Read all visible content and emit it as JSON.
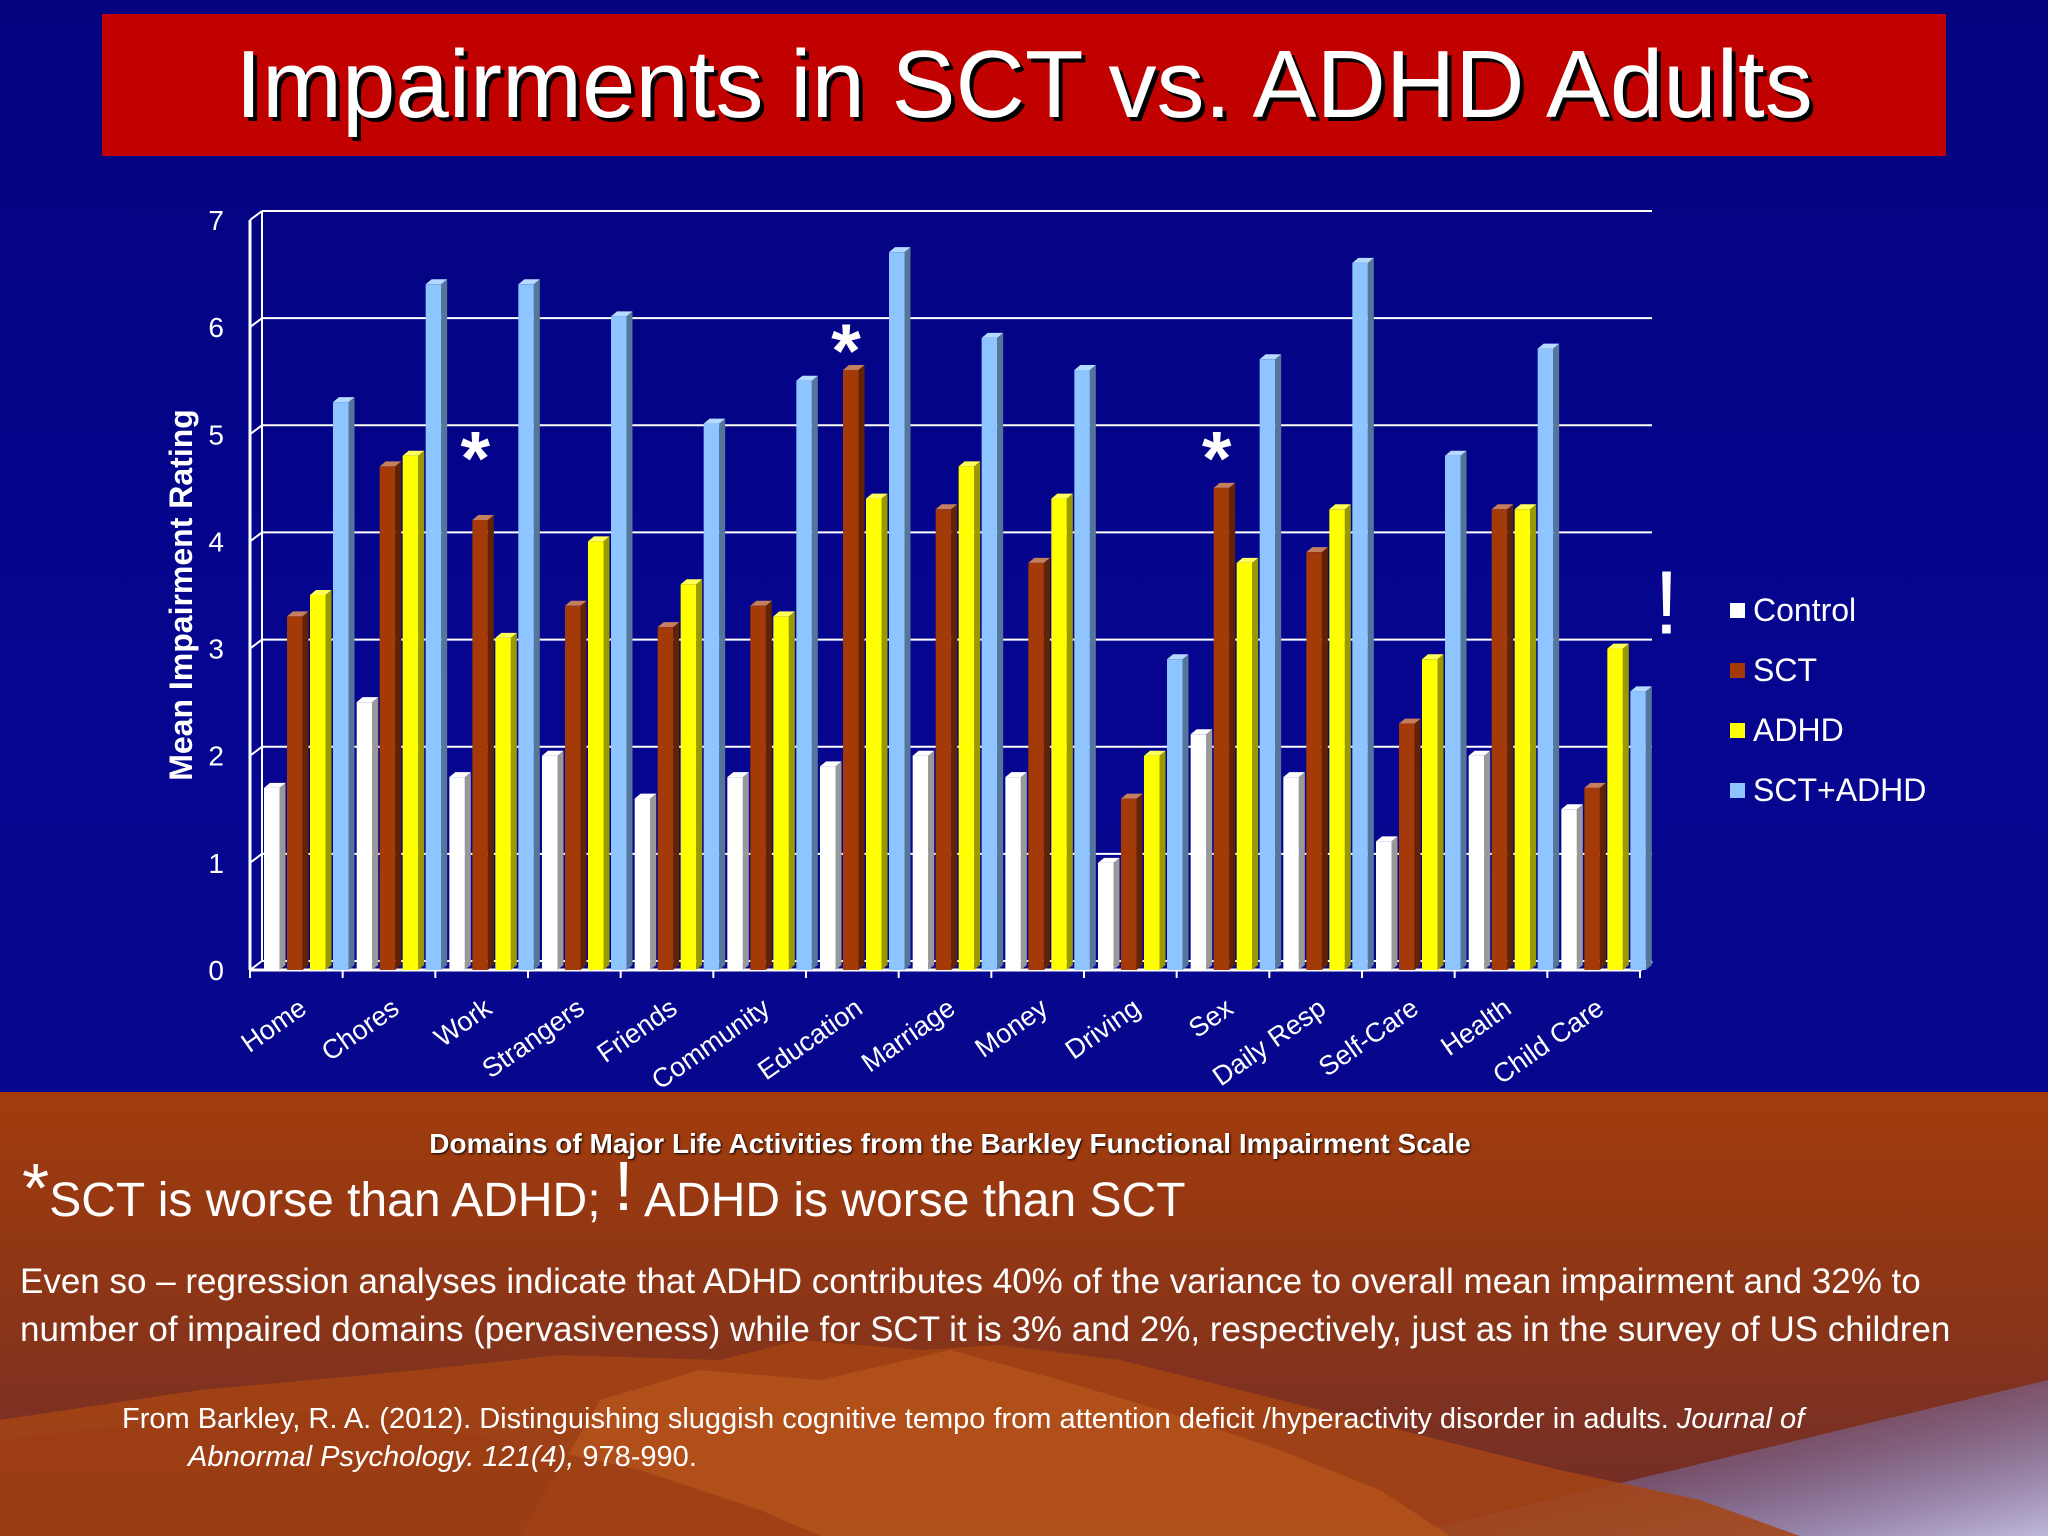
{
  "title": "Impairments in SCT vs. ADHD Adults",
  "chart_data": {
    "type": "bar",
    "ylabel": "Mean Impairment Rating",
    "xlabel": "Domains of Major Life Activities from the Barkley Functional Impairment Scale",
    "ylim": [
      0,
      7
    ],
    "yticks": [
      "0",
      "1",
      "2",
      "3",
      "4",
      "5",
      "6",
      "7"
    ],
    "grid": true,
    "legend_position": "right",
    "categories": [
      "Home",
      "Chores",
      "Work",
      "Strangers",
      "Friends",
      "Community",
      "Education",
      "Marriage",
      "Money",
      "Driving",
      "Sex",
      "Daily Resp",
      "Self-Care",
      "Health",
      "Child Care"
    ],
    "series": [
      {
        "name": "Control",
        "color": "#ffffff",
        "values": [
          1.7,
          2.5,
          1.8,
          2.0,
          1.6,
          1.8,
          1.9,
          2.0,
          1.8,
          1.0,
          2.2,
          1.8,
          1.2,
          2.0,
          1.5
        ]
      },
      {
        "name": "SCT",
        "color": "#a33a08",
        "values": [
          3.3,
          4.7,
          4.2,
          3.4,
          3.2,
          3.4,
          5.6,
          4.3,
          3.8,
          1.6,
          4.5,
          3.9,
          2.3,
          4.3,
          1.7
        ]
      },
      {
        "name": "ADHD",
        "color": "#ffff00",
        "values": [
          3.5,
          4.8,
          3.1,
          4.0,
          3.6,
          3.3,
          4.4,
          4.7,
          4.4,
          2.0,
          3.8,
          4.3,
          2.9,
          4.3,
          3.0
        ]
      },
      {
        "name": "SCT+ADHD",
        "color": "#8ec4ff",
        "values": [
          5.3,
          6.4,
          6.4,
          6.1,
          5.1,
          5.5,
          6.7,
          5.9,
          5.6,
          2.9,
          5.7,
          6.6,
          4.8,
          5.8,
          2.6
        ]
      }
    ],
    "annotations": [
      {
        "text": "*",
        "category": "Work",
        "value": 5.0
      },
      {
        "text": "*",
        "category": "Education",
        "value": 6.0
      },
      {
        "text": "*",
        "category": "Sex",
        "value": 5.0
      },
      {
        "text": "!",
        "category": "Child Care",
        "value": 3.4
      }
    ]
  },
  "legend": [
    "Control",
    "SCT",
    "ADHD",
    "SCT+ADHD"
  ],
  "footnote": {
    "star": "*",
    "star_text": "SCT is worse than ADHD; ",
    "excl": "!",
    "excl_text": " ADHD is worse than SCT"
  },
  "paragraph": "Even so – regression analyses indicate that ADHD contributes 40% of the variance to overall mean impairment and 32% to number of impaired domains (pervasiveness) while for SCT it is 3% and 2%, respectively, just as in the survey of US children",
  "citation": {
    "line1_plain": "From Barkley, R. A. (2012).  Distinguishing sluggish cognitive tempo from attention deficit /hyperactivity disorder in adults.  ",
    "line1_italic": "Journal of",
    "line2_italic": "Abnormal Psychology. 121(4),",
    "line2_plain": " 978-990."
  },
  "colors": {
    "title_banner": "#c10000",
    "background": "#03037e",
    "ground": "#9c3a10"
  }
}
